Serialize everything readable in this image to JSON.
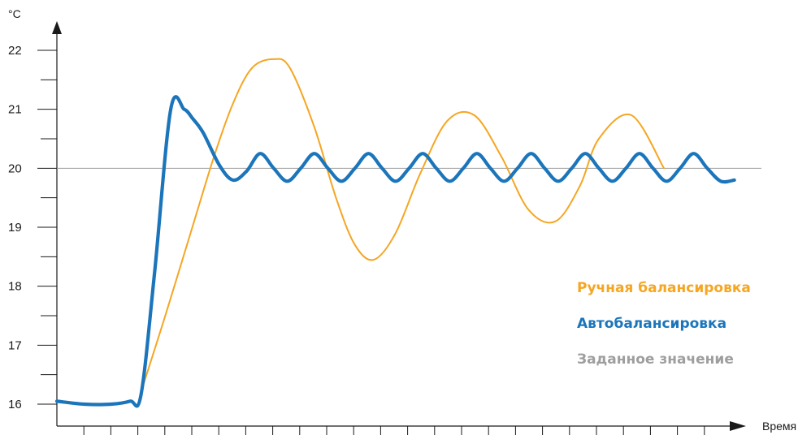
{
  "chart_data": {
    "type": "line",
    "ylabel": "°C",
    "xlabel": "Время",
    "ylim": [
      16,
      22
    ],
    "yticks": [
      "16",
      "17",
      "18",
      "19",
      "20",
      "21",
      "22"
    ],
    "x_tick_count": 26,
    "xlim": [
      0,
      26
    ],
    "grid": false,
    "legend_position": "right",
    "setpoint": 20,
    "series": [
      {
        "name": "Ручная балансировка",
        "color": "#F5A623",
        "x": [
          3.1,
          4.0,
          5.0,
          5.8,
          6.5,
          7.2,
          8.0,
          8.6,
          9.5,
          10.3,
          11.0,
          11.7,
          12.5,
          13.4,
          14.4,
          15.4,
          16.4,
          17.4,
          18.4,
          19.3,
          20.0,
          21.2,
          22.4
        ],
        "values": [
          16.2,
          17.5,
          19.0,
          20.2,
          21.1,
          21.7,
          21.85,
          21.7,
          20.7,
          19.5,
          18.7,
          18.45,
          18.9,
          19.9,
          20.8,
          20.9,
          20.2,
          19.3,
          19.1,
          19.7,
          20.5,
          20.9,
          20.0
        ]
      },
      {
        "name": "Автобалансировка",
        "color": "#1B75BB",
        "x": [
          0.0,
          1.0,
          2.0,
          2.7,
          3.1,
          3.6,
          4.2,
          4.7,
          5.0,
          5.4,
          6.0,
          6.5,
          7.0,
          7.5,
          8.0,
          8.5,
          9.0,
          9.5,
          10.0,
          10.5,
          11.0,
          11.5,
          12.0,
          12.5,
          13.0,
          13.5,
          14.0,
          14.5,
          15.0,
          15.5,
          16.0,
          16.5,
          17.0,
          17.5,
          18.0,
          18.5,
          19.0,
          19.5,
          20.0,
          20.5,
          21.0,
          21.5,
          22.0,
          22.5,
          23.0,
          23.5,
          24.0,
          24.5,
          25.0
        ],
        "values": [
          16.05,
          16.0,
          16.0,
          16.05,
          16.15,
          18.2,
          21.0,
          21.0,
          20.85,
          20.6,
          20.05,
          19.8,
          19.95,
          20.25,
          20.0,
          19.78,
          20.0,
          20.25,
          20.0,
          19.78,
          20.0,
          20.25,
          20.0,
          19.78,
          20.0,
          20.25,
          20.0,
          19.78,
          20.0,
          20.25,
          20.0,
          19.78,
          20.0,
          20.25,
          20.0,
          19.78,
          20.0,
          20.25,
          20.0,
          19.78,
          20.0,
          20.25,
          20.0,
          19.78,
          20.0,
          20.25,
          20.0,
          19.78,
          19.8
        ]
      }
    ],
    "legend": [
      {
        "label": "Ручная балансировка",
        "color": "#F5A623"
      },
      {
        "label": "Автобалансировка",
        "color": "#1B75BB"
      },
      {
        "label": "Заданное значение",
        "color": "#9E9E9E"
      }
    ]
  }
}
